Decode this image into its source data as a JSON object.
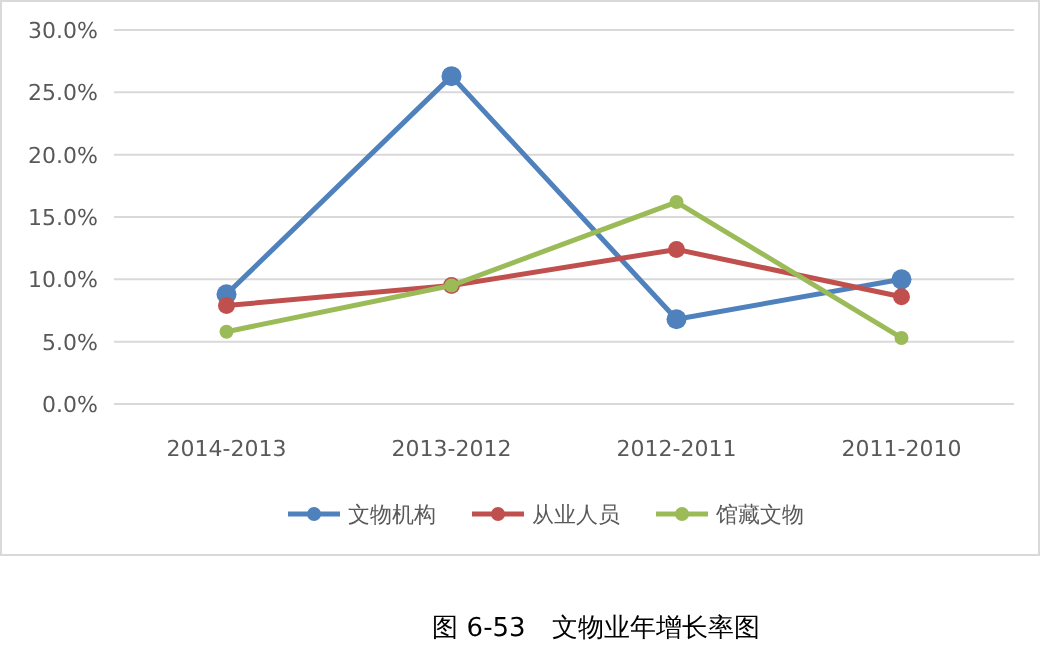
{
  "chart_data": {
    "type": "line",
    "title": "图 6-53　文物业年增长率图",
    "categories": [
      "2014-2013",
      "2013-2012",
      "2012-2011",
      "2011-2010"
    ],
    "series": [
      {
        "name": "文物机构",
        "color": "#4f81bd",
        "values": [
          8.8,
          26.3,
          6.8,
          10.0
        ]
      },
      {
        "name": "从业人员",
        "color": "#c0504d",
        "values": [
          7.9,
          9.5,
          12.4,
          8.6
        ]
      },
      {
        "name": "馆藏文物",
        "color": "#9bbb59",
        "values": [
          5.8,
          9.5,
          16.2,
          5.3
        ]
      }
    ],
    "ylim": [
      0,
      30
    ],
    "yticks": [
      {
        "value": 0,
        "label": "0.0%"
      },
      {
        "value": 5,
        "label": "5.0%"
      },
      {
        "value": 10,
        "label": "10.0%"
      },
      {
        "value": 15,
        "label": "15.0%"
      },
      {
        "value": 20,
        "label": "20.0%"
      },
      {
        "value": 25,
        "label": "25.0%"
      },
      {
        "value": 30,
        "label": "30.0%"
      }
    ],
    "grid": "y",
    "legend": "bottom",
    "marker": "circle",
    "line_style": "solid"
  }
}
